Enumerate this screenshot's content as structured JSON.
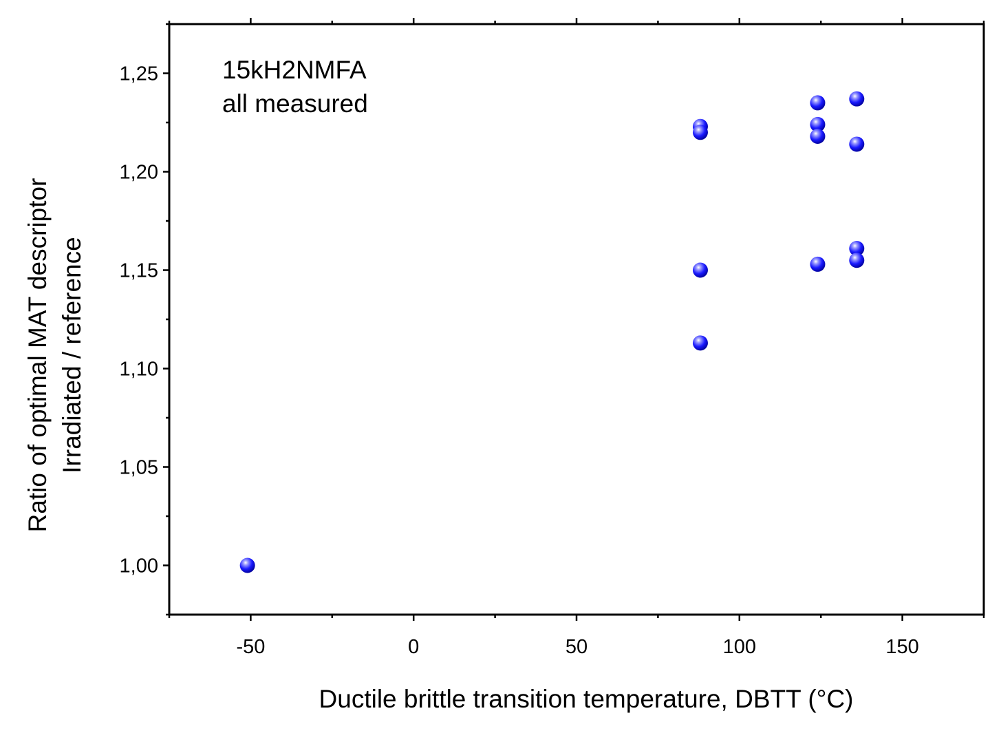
{
  "chart_data": {
    "type": "scatter",
    "xlabel": "Ductile brittle transition temperature, DBTT (°C)",
    "ylabel_lines": [
      "Ratio of optimal MAT descriptor",
      "Irradiated / reference"
    ],
    "annotation_lines": [
      "15kH2NMFA",
      "all measured"
    ],
    "xlim": [
      -75,
      175
    ],
    "ylim": [
      0.975,
      1.275
    ],
    "xticks": [
      -50,
      0,
      50,
      100,
      150
    ],
    "xtick_labels": [
      "-50",
      "0",
      "50",
      "100",
      "150"
    ],
    "yticks": [
      1.0,
      1.05,
      1.1,
      1.15,
      1.2,
      1.25
    ],
    "ytick_labels": [
      "1,00",
      "1,05",
      "1,10",
      "1,15",
      "1,20",
      "1,25"
    ],
    "grid": false,
    "marker_color": "#1a1aff",
    "series": [
      {
        "points": [
          {
            "x": -51,
            "y": 1.0
          },
          {
            "x": 88,
            "y": 1.223
          },
          {
            "x": 88,
            "y": 1.22
          },
          {
            "x": 88,
            "y": 1.15
          },
          {
            "x": 88,
            "y": 1.113
          },
          {
            "x": 124,
            "y": 1.235
          },
          {
            "x": 124,
            "y": 1.224
          },
          {
            "x": 124,
            "y": 1.218
          },
          {
            "x": 124,
            "y": 1.153
          },
          {
            "x": 136,
            "y": 1.237
          },
          {
            "x": 136,
            "y": 1.214
          },
          {
            "x": 136,
            "y": 1.161
          },
          {
            "x": 136,
            "y": 1.155
          }
        ]
      }
    ]
  }
}
